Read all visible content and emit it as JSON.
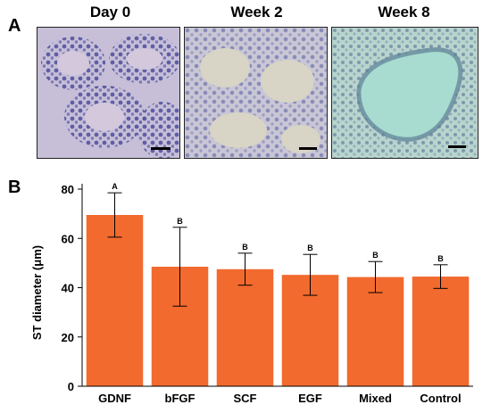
{
  "panel_a": {
    "letter": "A",
    "images": [
      {
        "title": "Day 0",
        "tissue": "histology-seminiferous-tubules-day0"
      },
      {
        "title": "Week 2",
        "tissue": "histology-seminiferous-tubules-week2"
      },
      {
        "title": "Week 8",
        "tissue": "histology-dilated-tubule-week8"
      }
    ]
  },
  "panel_b": {
    "letter": "B"
  },
  "colors": {
    "bar": "#F26A2E",
    "axis": "#000000"
  },
  "chart_data": {
    "type": "bar",
    "title": "",
    "xlabel": "",
    "ylabel": "ST diameter (μm)",
    "ylim": [
      0,
      80
    ],
    "yticks": [
      0,
      20,
      40,
      60,
      80
    ],
    "categories": [
      "GDNF",
      "bFGF",
      "SCF",
      "EGF",
      "Mixed",
      "Control"
    ],
    "values": [
      69.5,
      48.5,
      47.5,
      45.2,
      44.3,
      44.5
    ],
    "errors": [
      9,
      16,
      6.5,
      8.3,
      6.3,
      4.8
    ],
    "significance": [
      "A",
      "B",
      "B",
      "B",
      "B",
      "B"
    ],
    "grid": false
  }
}
